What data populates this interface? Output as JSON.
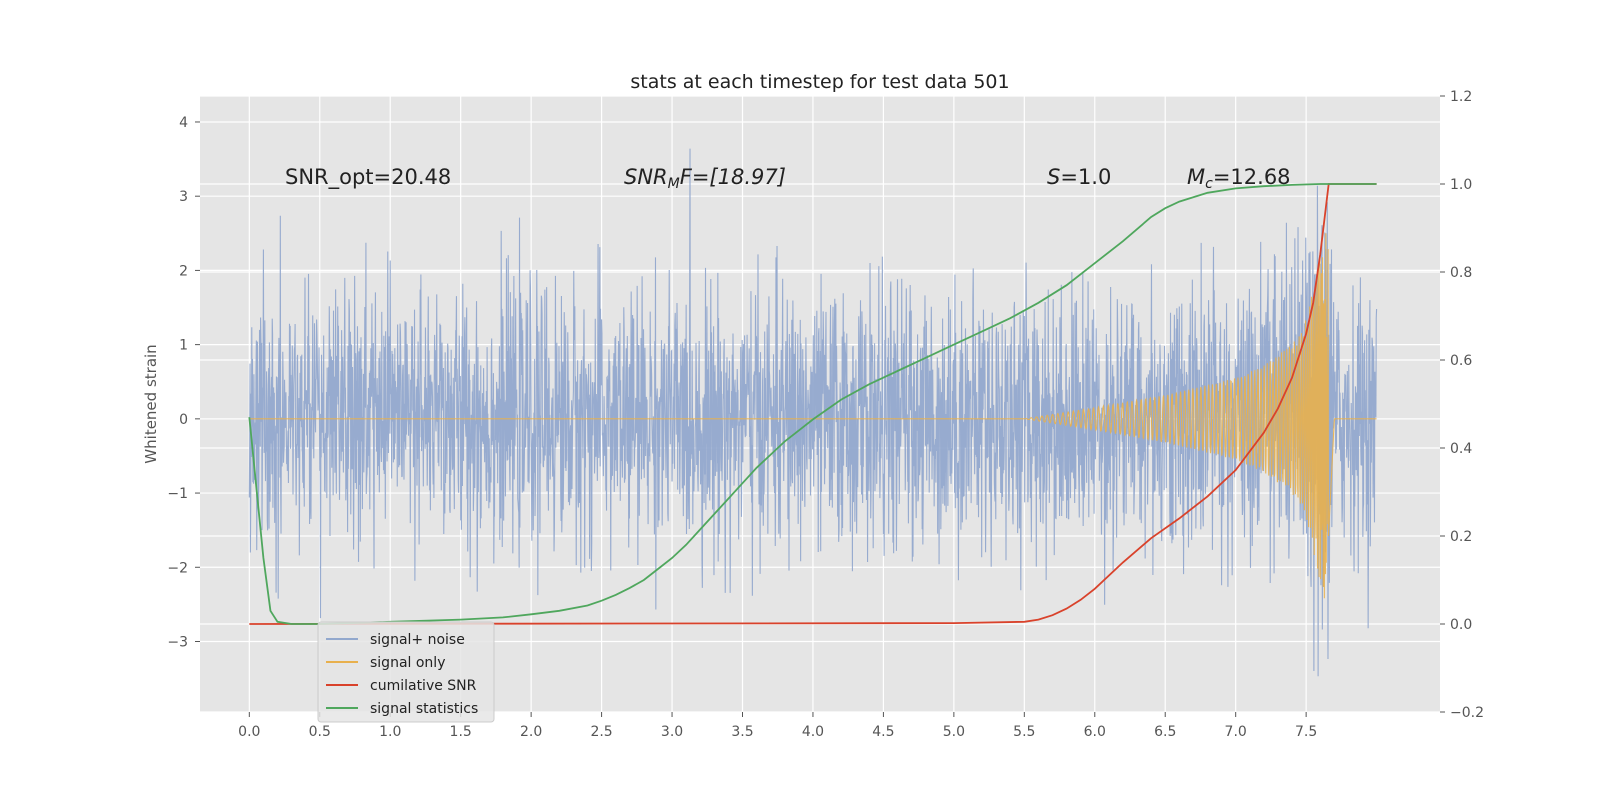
{
  "chart_data": {
    "type": "line",
    "title": "stats at each timestep for test data 501",
    "ylabel": "Whitened strain",
    "y2label": "",
    "xlim": [
      -0.35,
      8.45
    ],
    "ylim": [
      -3.95,
      4.35
    ],
    "y2lim": [
      -0.2,
      1.2
    ],
    "x_ticks": [
      "0.0",
      "0.5",
      "1.0",
      "1.5",
      "2.0",
      "2.5",
      "3.0",
      "3.5",
      "4.0",
      "4.5",
      "5.0",
      "5.5",
      "6.0",
      "6.5",
      "7.0",
      "7.5"
    ],
    "y_ticks": [
      "−3",
      "−2",
      "−1",
      "0",
      "1",
      "2",
      "3",
      "4"
    ],
    "y2_ticks": [
      "−0.2",
      "0.0",
      "0.2",
      "0.4",
      "0.6",
      "0.8",
      "1.0",
      "1.2"
    ],
    "grid": true,
    "legend_position": "lower-left",
    "annotations": {
      "snr_opt": "SNR_opt=20.48",
      "snr_mf_base": "SNR",
      "snr_mf_sub": "M",
      "snr_mf_rest": "F=[18.97]",
      "s_sym": "S",
      "s_rest": "=1.0",
      "mc_sym": "M",
      "mc_sub": "c",
      "mc_rest": "=12.68"
    },
    "series": [
      {
        "name": "signal+ noise",
        "color": "#92a8cd",
        "axis": "left",
        "x_range": [
          0.0,
          8.0
        ],
        "std": 0.85,
        "max": 4.0,
        "min": -3.6
      },
      {
        "name": "signal only",
        "color": "#e8b04d",
        "axis": "left",
        "x_range": [
          0.0,
          8.0
        ],
        "envelope": {
          "x": [
            0.0,
            5.5,
            6.0,
            6.5,
            7.0,
            7.2,
            7.4,
            7.5,
            7.6,
            7.65,
            7.7,
            8.0
          ],
          "amp": [
            0.0,
            0.0,
            0.15,
            0.32,
            0.55,
            0.72,
            1.0,
            1.35,
            2.2,
            2.6,
            0.0,
            0.0
          ]
        }
      },
      {
        "name": "cumilative SNR",
        "color": "#d9422b",
        "axis": "right",
        "x": [
          0.0,
          5.0,
          5.5,
          5.6,
          5.7,
          5.8,
          5.9,
          6.0,
          6.2,
          6.4,
          6.6,
          6.8,
          7.0,
          7.2,
          7.3,
          7.4,
          7.5,
          7.55,
          7.6,
          7.63,
          7.66,
          8.0
        ],
        "y": [
          0.0,
          0.002,
          0.005,
          0.01,
          0.02,
          0.035,
          0.055,
          0.08,
          0.14,
          0.195,
          0.24,
          0.29,
          0.35,
          0.435,
          0.49,
          0.56,
          0.66,
          0.73,
          0.84,
          0.92,
          1.0,
          1.0
        ]
      },
      {
        "name": "signal statistics",
        "color": "#4fa75d",
        "axis": "right",
        "x": [
          0.0,
          0.1,
          0.15,
          0.2,
          0.3,
          0.5,
          1.0,
          1.5,
          1.8,
          2.0,
          2.2,
          2.4,
          2.5,
          2.6,
          2.7,
          2.8,
          2.9,
          3.0,
          3.1,
          3.2,
          3.3,
          3.4,
          3.5,
          3.6,
          3.7,
          3.8,
          3.9,
          4.0,
          4.2,
          4.4,
          4.6,
          4.8,
          5.0,
          5.2,
          5.4,
          5.6,
          5.8,
          6.0,
          6.2,
          6.4,
          6.5,
          6.6,
          6.8,
          7.0,
          7.2,
          7.4,
          7.6,
          7.8,
          8.0
        ],
        "y": [
          0.47,
          0.15,
          0.03,
          0.005,
          0.0,
          0.0,
          0.005,
          0.01,
          0.015,
          0.022,
          0.03,
          0.042,
          0.053,
          0.066,
          0.082,
          0.1,
          0.125,
          0.15,
          0.18,
          0.215,
          0.25,
          0.285,
          0.32,
          0.355,
          0.385,
          0.415,
          0.44,
          0.465,
          0.51,
          0.545,
          0.575,
          0.605,
          0.635,
          0.665,
          0.695,
          0.73,
          0.77,
          0.82,
          0.87,
          0.925,
          0.945,
          0.96,
          0.98,
          0.99,
          0.995,
          0.998,
          1.0,
          1.0,
          1.0
        ]
      }
    ]
  }
}
